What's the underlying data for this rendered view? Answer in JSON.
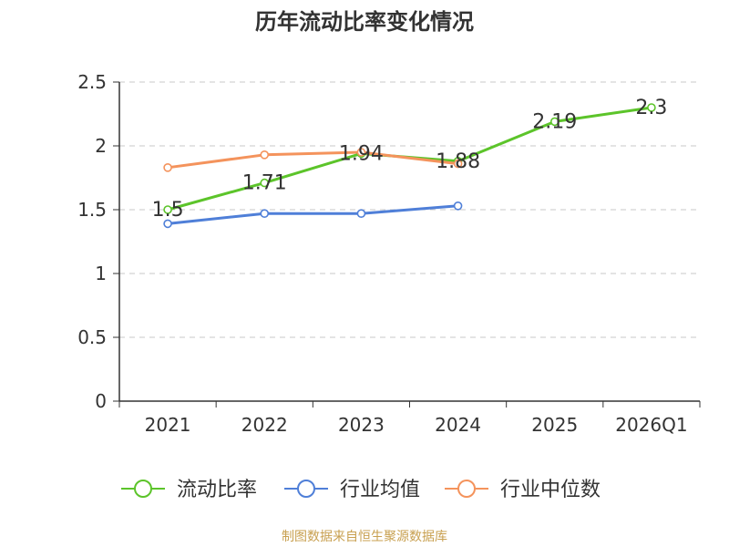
{
  "title": "历年流动比率变化情况",
  "source": "制图数据来自恒生聚源数据库",
  "chart_data": {
    "type": "line",
    "title": "历年流动比率变化情况",
    "categories": [
      "2021",
      "2022",
      "2023",
      "2024",
      "2025",
      "2026Q1"
    ],
    "ylim": [
      0,
      2.5
    ],
    "yticks": [
      "0",
      "0.5",
      "1",
      "1.5",
      "2",
      "2.5"
    ],
    "grid": true,
    "legend_position": "bottom",
    "series": [
      {
        "name": "流动比率",
        "color": "#5cc42a",
        "values": [
          1.5,
          1.71,
          1.94,
          1.88,
          2.19,
          2.3
        ],
        "labels": [
          "1.5",
          "1.71",
          "1.94",
          "1.88",
          "2.19",
          "2.3"
        ]
      },
      {
        "name": "行业均值",
        "color": "#4f7fd8",
        "values": [
          1.39,
          1.47,
          1.47,
          1.53,
          null,
          null
        ]
      },
      {
        "name": "行业中位数",
        "color": "#f4935c",
        "values": [
          1.83,
          1.93,
          1.95,
          1.86,
          null,
          null
        ]
      }
    ]
  }
}
